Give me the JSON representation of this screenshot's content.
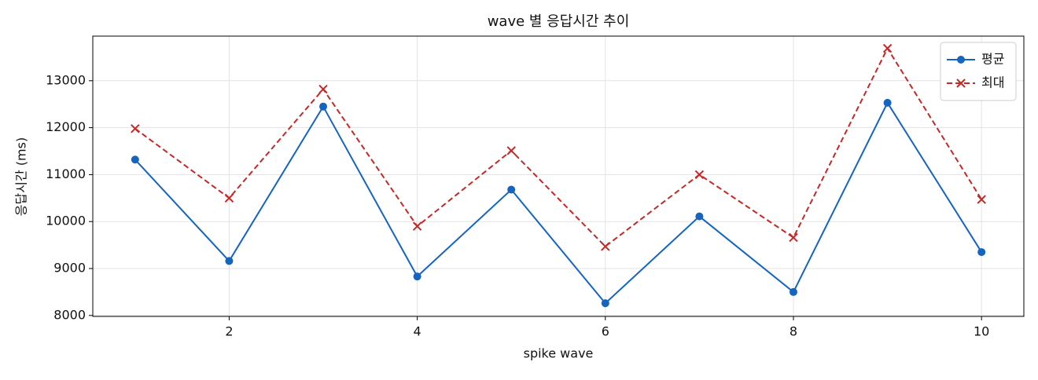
{
  "chart_data": {
    "type": "line",
    "title": "wave 별 응답시간 추이",
    "x_label": "spike wave",
    "y_label": "응답시간 (ms)",
    "x": [
      1,
      2,
      3,
      4,
      5,
      6,
      7,
      8,
      9,
      10
    ],
    "series": [
      {
        "name": "평균",
        "color": "#1565c0",
        "marker": "o",
        "linestyle": "solid",
        "values": [
          11320,
          9160,
          12450,
          8830,
          10680,
          8260,
          10110,
          8500,
          12530,
          9350
        ]
      },
      {
        "name": "최대",
        "color": "#c62828",
        "marker": "x",
        "linestyle": "dashed",
        "values": [
          11980,
          10500,
          12820,
          9900,
          11510,
          9470,
          11000,
          9660,
          13690,
          10470
        ]
      }
    ],
    "xlim": [
      0.55,
      10.45
    ],
    "xticks": [
      2,
      4,
      6,
      8,
      10
    ],
    "ylim": [
      7980,
      13950
    ],
    "yticks": [
      8000,
      9000,
      10000,
      11000,
      12000,
      13000
    ],
    "grid": true,
    "legend": "upper right"
  }
}
